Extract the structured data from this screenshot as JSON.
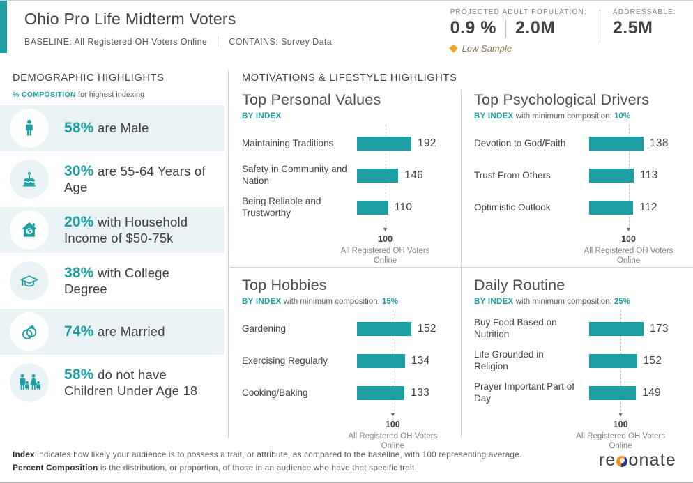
{
  "header": {
    "title": "Ohio Pro Life Midterm Voters",
    "baseline": "BASELINE: All Registered OH Voters Online",
    "contains": "CONTAINS: Survey Data",
    "stats": {
      "projected_label": "PROJECTED ADULT POPULATION:",
      "projected_pct": "0.9 %",
      "projected_abs": "2.0M",
      "addressable_label": "ADDRESSABLE:",
      "addressable_value": "2.5M"
    },
    "warning": "Low Sample",
    "warning_icon": "low-sample-diamond-icon"
  },
  "sidebar": {
    "title": "DEMOGRAPHIC HIGHLIGHTS",
    "subtitle_highlight": "% COMPOSITION",
    "subtitle_rest": " for highest indexing",
    "items": [
      {
        "icon": "male-icon",
        "value": "58%",
        "text": " are Male"
      },
      {
        "icon": "birthday-cake-icon",
        "value": "30%",
        "text": " are 55-64 Years of Age"
      },
      {
        "icon": "household-income-icon",
        "value": "20%",
        "text": " with Household Income of $50-75k"
      },
      {
        "icon": "graduation-cap-icon",
        "value": "38%",
        "text": " with College Degree"
      },
      {
        "icon": "wedding-rings-icon",
        "value": "74%",
        "text": " are Married"
      },
      {
        "icon": "family-icon",
        "value": "58%",
        "text": " do not have Children Under Age 18"
      }
    ]
  },
  "main": {
    "title": "MOTIVATIONS & LIFESTYLE HIGHLIGHTS"
  },
  "chart_data": [
    {
      "type": "bar",
      "title": "Top Personal Values",
      "by_index_label": "BY INDEX",
      "min_comp_label": null,
      "min_comp_value": null,
      "categories": [
        "Maintaining Traditions",
        "Safety in Community and Nation",
        "Being Reliable and Trustworthy"
      ],
      "values": [
        192,
        146,
        110
      ],
      "baseline_value": "100",
      "baseline_label": "All Registered OH Voters Online",
      "bar_color": "#1D9EA3",
      "legend_position": "none",
      "grid": false
    },
    {
      "type": "bar",
      "title": "Top Psychological Drivers",
      "by_index_label": "BY INDEX",
      "min_comp_label": "with minimum composition:",
      "min_comp_value": "10%",
      "categories": [
        "Devotion to God/Faith",
        "Trust From Others",
        "Optimistic Outlook"
      ],
      "values": [
        138,
        113,
        112
      ],
      "baseline_value": "100",
      "baseline_label": "All Registered OH Voters Online",
      "bar_color": "#1D9EA3",
      "legend_position": "none",
      "grid": false
    },
    {
      "type": "bar",
      "title": "Top Hobbies",
      "by_index_label": "BY INDEX",
      "min_comp_label": "with minimum composition:",
      "min_comp_value": "15%",
      "categories": [
        "Gardening",
        "Exercising Regularly",
        "Cooking/Baking"
      ],
      "values": [
        152,
        134,
        133
      ],
      "baseline_value": "100",
      "baseline_label": "All Registered OH Voters Online",
      "bar_color": "#1D9EA3",
      "legend_position": "none",
      "grid": false
    },
    {
      "type": "bar",
      "title": "Daily Routine",
      "by_index_label": "BY INDEX",
      "min_comp_label": "with minimum composition:",
      "min_comp_value": "25%",
      "categories": [
        "Buy Food Based on Nutrition",
        "Life Grounded in Religion",
        "Prayer Important Part of Day"
      ],
      "values": [
        173,
        152,
        149
      ],
      "baseline_value": "100",
      "baseline_label": "All Registered OH Voters Online",
      "bar_color": "#1D9EA3",
      "legend_position": "none",
      "grid": false
    }
  ],
  "footer": {
    "line1_bold": "Index",
    "line1_rest": " indicates how likely your audience is to possess a trait, or attribute, as compared to the baseline, with 100 representing average.",
    "line2_bold": "Percent Composition",
    "line2_rest": " is the distribution, or proportion, of those in an audience who have that specific trait.",
    "logo_prefix": "re",
    "logo_suffix": "onate"
  },
  "colors": {
    "teal": "#1D9EA3",
    "amber": "#EFA81E",
    "row_shade": "#e9f2f4",
    "divider": "#d1d3d4",
    "text_dark": "#414042",
    "text_gray": "#808285"
  }
}
